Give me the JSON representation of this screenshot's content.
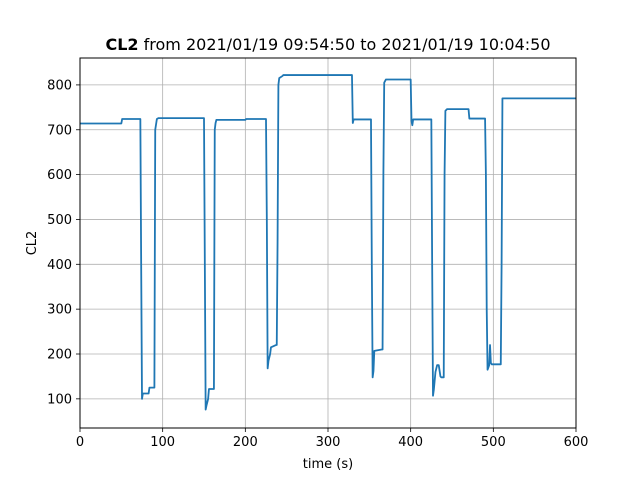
{
  "chart_data": {
    "type": "line",
    "title_bold": "CL2",
    "title_rest": " from 2021/01/19 09:54:50 to 2021/01/19 10:04:50",
    "xlabel": "time (s)",
    "ylabel": "CL2",
    "xlim": [
      0,
      600
    ],
    "ylim": [
      35,
      860
    ],
    "grid": true,
    "xticks": [
      0,
      100,
      200,
      300,
      400,
      500,
      600
    ],
    "yticks": [
      100,
      200,
      300,
      400,
      500,
      600,
      700,
      800
    ],
    "colors": {
      "line": "#1f77b4",
      "grid": "#b0b0b0",
      "axes": "#000000"
    },
    "series": [
      {
        "name": "",
        "x": [
          0,
          50,
          51,
          73,
          74,
          75,
          76,
          83,
          84,
          90,
          91,
          92,
          93,
          95,
          150,
          151,
          152,
          153,
          155,
          156,
          162,
          163,
          164,
          165,
          200,
          201,
          225,
          226,
          227,
          228,
          230,
          231,
          237,
          238,
          239,
          240,
          241,
          245,
          246,
          329,
          330,
          331,
          352,
          353,
          354,
          355,
          356,
          365,
          366,
          367,
          368,
          370,
          400,
          401,
          402,
          403,
          425,
          426,
          427,
          428,
          430,
          432,
          434,
          436,
          437,
          438,
          440,
          441,
          442,
          444,
          445,
          470,
          471,
          490,
          491,
          492,
          493,
          494,
          495,
          496,
          497,
          498,
          499,
          500,
          501,
          502,
          508,
          509,
          510,
          511,
          600
        ],
        "y": [
          714,
          714,
          724,
          724,
          400,
          100,
          112,
          112,
          125,
          125,
          700,
          712,
          724,
          726,
          726,
          400,
          76,
          85,
          100,
          122,
          122,
          700,
          715,
          722,
          722,
          724,
          724,
          500,
          168,
          185,
          200,
          215,
          220,
          220,
          450,
          800,
          815,
          820,
          822,
          822,
          715,
          723,
          723,
          400,
          148,
          162,
          207,
          210,
          210,
          600,
          805,
          812,
          812,
          720,
          710,
          723,
          723,
          400,
          107,
          120,
          160,
          175,
          175,
          150,
          148,
          148,
          148,
          600,
          742,
          746,
          746,
          746,
          725,
          725,
          600,
          300,
          165,
          170,
          175,
          220,
          180,
          177,
          177,
          177,
          177,
          177,
          177,
          177,
          400,
          770,
          770
        ]
      }
    ]
  }
}
